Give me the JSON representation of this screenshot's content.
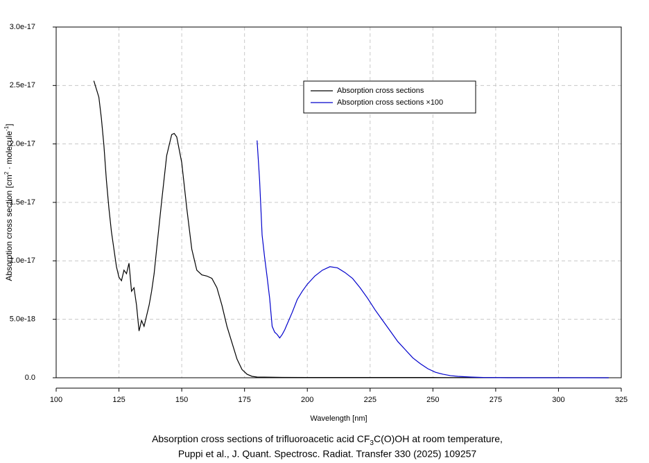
{
  "chart_data": {
    "type": "line",
    "xlabel": "Wavelength [nm]",
    "ylabel_parts": [
      "Absorption cross section [cm",
      "2",
      " · molecule",
      "-1",
      "]"
    ],
    "caption_line1_parts": [
      "Absorption cross sections of trifluoroacetic acid CF",
      "3",
      "C(O)OH at room temperature,"
    ],
    "caption_line2": "Puppi et al., J. Quant. Spectrosc. Radiat. Transfer 330 (2025) 109257",
    "xlim": [
      100,
      325
    ],
    "xticks": [
      100,
      125,
      150,
      175,
      200,
      225,
      250,
      275,
      300,
      325
    ],
    "ylim": [
      0,
      3e-17
    ],
    "yticks": [
      {
        "value": 0,
        "label": "0.0"
      },
      {
        "value": 5e-18,
        "label": "5.0e-18"
      },
      {
        "value": 1e-17,
        "label": "1.0e-17"
      },
      {
        "value": 1.5e-17,
        "label": "1.5e-17"
      },
      {
        "value": 2e-17,
        "label": "2.0e-17"
      },
      {
        "value": 2.5e-17,
        "label": "2.5e-17"
      },
      {
        "value": 3e-17,
        "label": "3.0e-17"
      }
    ],
    "grid": true,
    "legend": "upper center",
    "series": [
      {
        "name": "Absorption cross sections",
        "color": "#000000",
        "x": [
          115,
          117,
          118,
          119,
          120,
          121,
          122,
          123,
          124,
          125,
          126,
          127,
          128,
          129,
          130,
          131,
          132,
          133,
          134,
          135,
          136,
          137,
          138,
          139,
          140,
          142,
          144,
          146,
          147,
          148,
          150,
          152,
          154,
          156,
          158,
          160,
          162,
          164,
          166,
          168,
          170,
          172,
          174,
          176,
          178,
          180,
          190,
          200,
          250,
          300,
          320
        ],
        "values": [
          2.54e-17,
          2.4e-17,
          2.22e-17,
          1.99e-17,
          1.69e-17,
          1.45e-17,
          1.25e-17,
          1.1e-17,
          9.5e-18,
          8.6e-18,
          8.3e-18,
          9.2e-18,
          8.9e-18,
          9.8e-18,
          7.4e-18,
          7.7e-18,
          6.2e-18,
          4e-18,
          4.9e-18,
          4.4e-18,
          5.3e-18,
          6.2e-18,
          7.4e-18,
          8.9e-18,
          1.1e-17,
          1.51e-17,
          1.9e-17,
          2.08e-17,
          2.09e-17,
          2.06e-17,
          1.84e-17,
          1.45e-17,
          1.1e-17,
          9.2e-18,
          8.8e-18,
          8.7e-18,
          8.5e-18,
          7.7e-18,
          6.2e-18,
          4.4e-18,
          3e-18,
          1.6e-18,
          7e-19,
          3e-19,
          1.2e-19,
          6e-20,
          3e-20,
          2e-20,
          2e-20,
          1e-20,
          0
        ]
      },
      {
        "name": "Absorption cross sections ×100",
        "color": "#0000cc",
        "x": [
          180,
          181,
          182,
          183,
          184,
          185,
          186,
          187,
          188,
          189,
          190,
          191,
          192,
          194,
          196,
          198,
          200,
          203,
          206,
          209,
          212,
          215,
          218,
          221,
          224,
          227,
          230,
          233,
          236,
          239,
          242,
          245,
          248,
          251,
          254,
          257,
          260,
          265,
          270,
          280,
          300,
          320
        ],
        "values": [
          2.03e-17,
          1.69e-17,
          1.22e-17,
          1.03e-17,
          8.6e-18,
          6.8e-18,
          4.4e-18,
          3.9e-18,
          3.7e-18,
          3.4e-18,
          3.7e-18,
          4.1e-18,
          4.6e-18,
          5.6e-18,
          6.7e-18,
          7.4e-18,
          8e-18,
          8.7e-18,
          9.2e-18,
          9.5e-18,
          9.4e-18,
          9e-18,
          8.5e-18,
          7.7e-18,
          6.8e-18,
          5.8e-18,
          4.9e-18,
          4e-18,
          3.1e-18,
          2.4e-18,
          1.7e-18,
          1.2e-18,
          7.7e-19,
          4.7e-19,
          3e-19,
          1.8e-19,
          1.2e-19,
          6e-20,
          2e-20,
          0,
          0,
          0
        ]
      }
    ]
  }
}
